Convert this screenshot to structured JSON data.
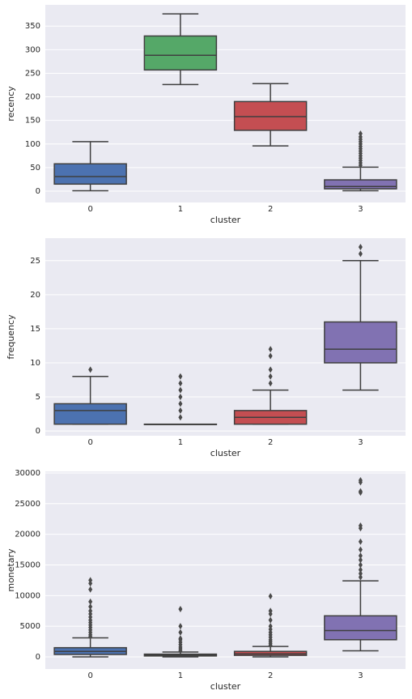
{
  "chart_data": [
    {
      "type": "box",
      "xlabel": "cluster",
      "ylabel": "recency",
      "categories": [
        "0",
        "1",
        "2",
        "3"
      ],
      "colors": [
        "#4c72b0",
        "#55a868",
        "#c44e52",
        "#8172b2"
      ],
      "grid": true,
      "ylim": [
        -24,
        395
      ],
      "yticks": [
        0,
        50,
        100,
        150,
        200,
        250,
        300,
        350
      ],
      "boxes": [
        {
          "whislo": 1,
          "q1": 15,
          "med": 31,
          "q3": 58,
          "whishi": 105,
          "fliers": []
        },
        {
          "whislo": 226,
          "q1": 257,
          "med": 288,
          "q3": 329,
          "whishi": 376,
          "fliers": []
        },
        {
          "whislo": 96,
          "q1": 129,
          "med": 158,
          "q3": 190,
          "whishi": 228,
          "fliers": []
        },
        {
          "whislo": 1,
          "q1": 5,
          "med": 10,
          "q3": 24,
          "whishi": 51,
          "fliers": [
            55,
            60,
            65,
            70,
            75,
            80,
            85,
            90,
            95,
            100,
            105,
            110,
            115,
            122
          ]
        }
      ]
    },
    {
      "type": "box",
      "xlabel": "cluster",
      "ylabel": "frequency",
      "categories": [
        "0",
        "1",
        "2",
        "3"
      ],
      "colors": [
        "#4c72b0",
        "#55a868",
        "#c44e52",
        "#8172b2"
      ],
      "grid": true,
      "ylim": [
        -0.7,
        28.3
      ],
      "yticks": [
        0,
        5,
        10,
        15,
        20,
        25
      ],
      "boxes": [
        {
          "whislo": 1,
          "q1": 1,
          "med": 3,
          "q3": 4,
          "whishi": 8,
          "fliers": [
            9
          ]
        },
        {
          "whislo": 1,
          "q1": 1,
          "med": 1,
          "q3": 1,
          "whishi": 1,
          "fliers": [
            2,
            3,
            4,
            5,
            6,
            7,
            8
          ]
        },
        {
          "whislo": 1,
          "q1": 1,
          "med": 2,
          "q3": 3,
          "whishi": 6,
          "fliers": [
            7,
            8,
            9,
            11,
            12
          ]
        },
        {
          "whislo": 6,
          "q1": 10,
          "med": 12,
          "q3": 16,
          "whishi": 25,
          "fliers": [
            26,
            27
          ]
        }
      ]
    },
    {
      "type": "box",
      "xlabel": "cluster",
      "ylabel": "monetary",
      "categories": [
        "0",
        "1",
        "2",
        "3"
      ],
      "colors": [
        "#4c72b0",
        "#55a868",
        "#c44e52",
        "#8172b2"
      ],
      "grid": true,
      "ylim": [
        -1980,
        30260
      ],
      "yticks": [
        0,
        5000,
        10000,
        15000,
        20000,
        25000,
        30000
      ],
      "boxes": [
        {
          "whislo": 0,
          "q1": 400,
          "med": 900,
          "q3": 1500,
          "whishi": 3100,
          "fliers": [
            3300,
            3600,
            4000,
            4400,
            4800,
            5200,
            5600,
            6000,
            6500,
            7000,
            7500,
            8200,
            9000,
            11000,
            12000,
            12500
          ]
        },
        {
          "whislo": 0,
          "q1": 150,
          "med": 300,
          "q3": 450,
          "whishi": 800,
          "fliers": [
            1000,
            1300,
            1600,
            2000,
            2400,
            2800,
            3000,
            4000,
            5000,
            7800
          ]
        },
        {
          "whislo": 0,
          "q1": 250,
          "med": 500,
          "q3": 900,
          "whishi": 1700,
          "fliers": [
            1900,
            2200,
            2500,
            2800,
            3200,
            3600,
            4000,
            4500,
            5000,
            6000,
            7000,
            7500,
            9900
          ]
        },
        {
          "whislo": 1000,
          "q1": 2800,
          "med": 4300,
          "q3": 6700,
          "whishi": 12400,
          "fliers": [
            13000,
            13600,
            14200,
            15000,
            15800,
            16500,
            17500,
            18800,
            21000,
            21400,
            26800,
            27000,
            28500,
            28800
          ]
        }
      ]
    }
  ]
}
